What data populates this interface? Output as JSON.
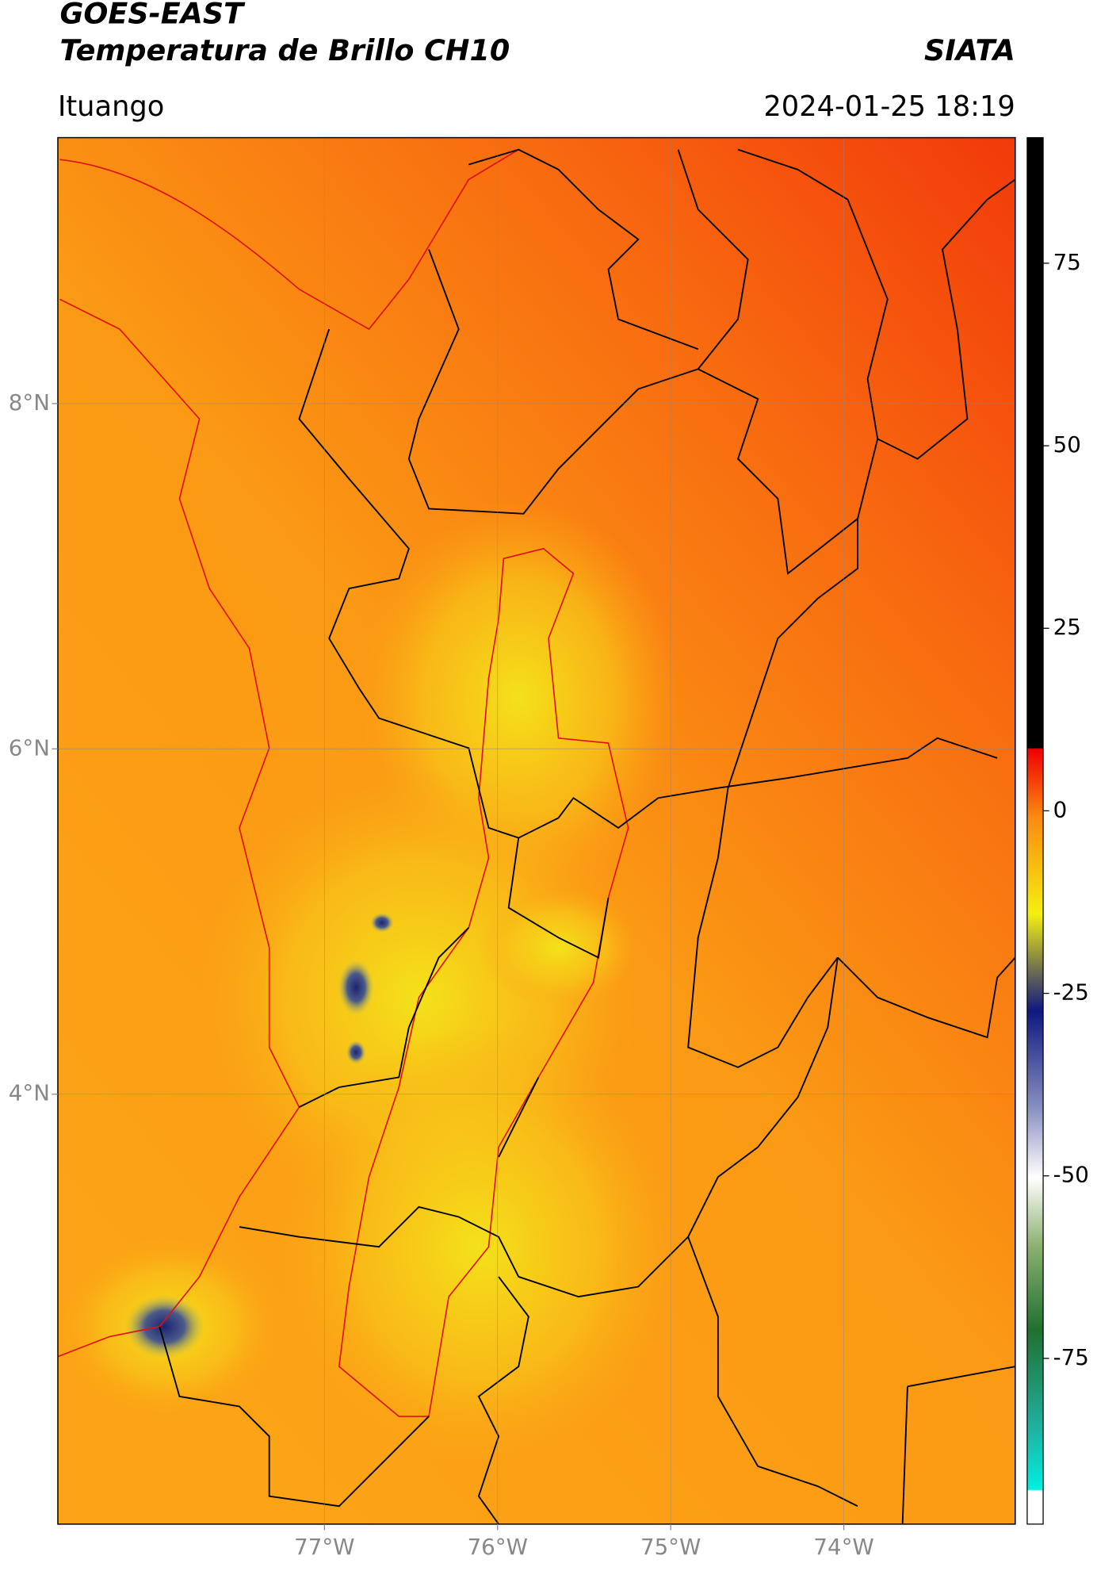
{
  "header": {
    "title": "GOES-EAST",
    "subtitle": "Temperatura de Brillo CH10",
    "brand": "SIATA",
    "location": "Ituango",
    "datetime": "2024-01-25 18:19"
  },
  "map": {
    "xlim": [
      -78.54,
      -73.01
    ],
    "ylim": [
      1.51,
      9.54
    ],
    "xticks": [
      {
        "value": -77,
        "label": "77°W"
      },
      {
        "value": -76,
        "label": "76°W"
      },
      {
        "value": -75,
        "label": "75°W"
      },
      {
        "value": -74,
        "label": "74°W"
      }
    ],
    "yticks": [
      {
        "value": 8,
        "label": "8°N"
      },
      {
        "value": 6,
        "label": "6°N"
      },
      {
        "value": 4,
        "label": "4°N"
      }
    ]
  },
  "colorbar": {
    "lim": [
      -97.7,
      92.2
    ],
    "ticks": [
      75,
      50,
      25,
      0,
      -25,
      -50,
      -75
    ]
  }
}
